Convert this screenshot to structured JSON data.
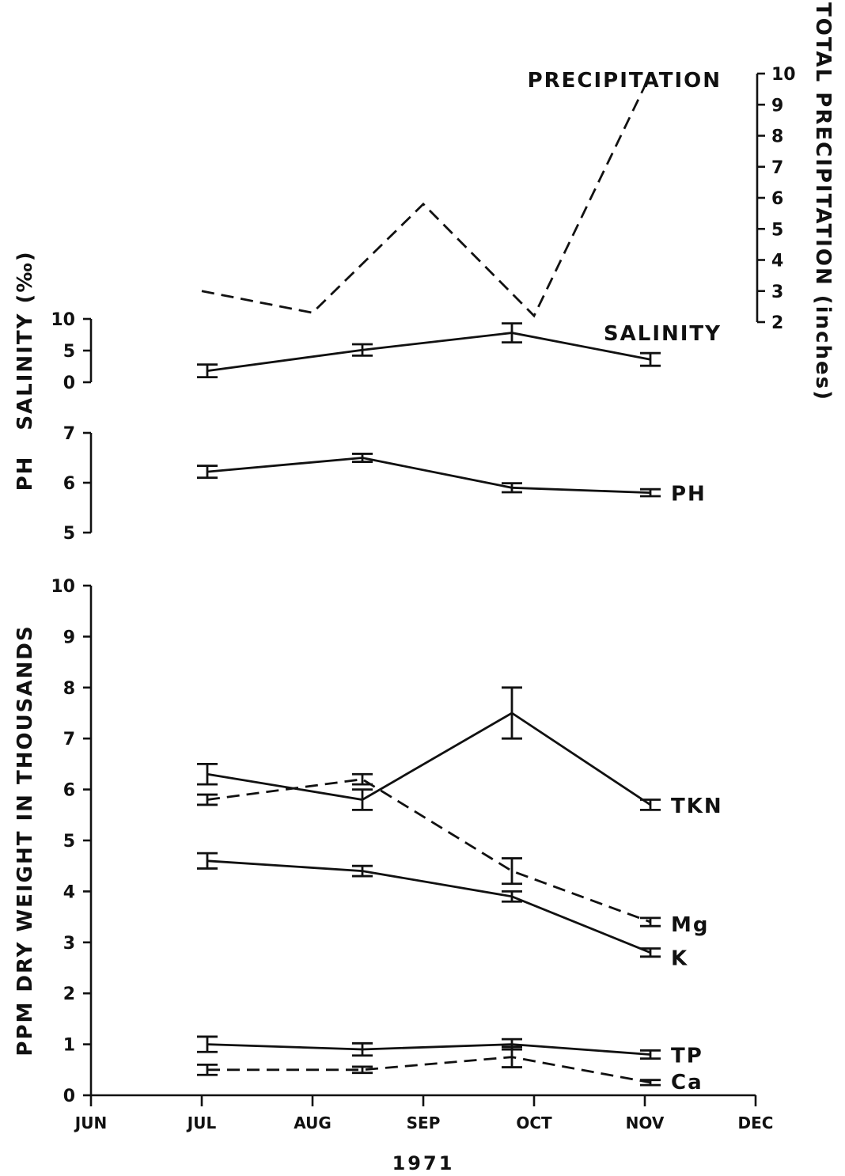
{
  "chart_data": [
    {
      "type": "line",
      "panel": "precipitation",
      "axis_title": "TOTAL PRECIPITATION (inches)",
      "axis_side": "right",
      "ylim": [
        2,
        10
      ],
      "ticks": [
        2,
        3,
        4,
        5,
        6,
        7,
        8,
        9,
        10
      ],
      "tick_labels": [
        "2",
        "3",
        "4",
        "5",
        "6",
        "7",
        "8",
        "9",
        "10"
      ],
      "series": [
        {
          "name": "PRECIPITATION",
          "style": "dashed",
          "x": [
            7.0,
            8.0,
            9.0,
            10.0,
            11.0
          ],
          "y": [
            3.0,
            2.3,
            5.8,
            2.2,
            9.6
          ]
        }
      ]
    },
    {
      "type": "line",
      "panel": "salinity",
      "axis_title": "SALINITY (‰)",
      "ylim": [
        0,
        10
      ],
      "ticks": [
        0,
        5,
        10
      ],
      "tick_labels": [
        "0",
        "5",
        "10"
      ],
      "series": [
        {
          "name": "SALINITY",
          "style": "solid",
          "x": [
            7.05,
            8.45,
            9.8,
            11.05
          ],
          "y": [
            1.8,
            5.1,
            7.8,
            3.6
          ],
          "err": [
            1.0,
            0.9,
            1.5,
            1.0
          ]
        }
      ]
    },
    {
      "type": "line",
      "panel": "ph",
      "axis_title": "PH",
      "ylim": [
        5,
        7
      ],
      "ticks": [
        5,
        6,
        7
      ],
      "tick_labels": [
        "5",
        "6",
        "7"
      ],
      "series": [
        {
          "name": "PH",
          "style": "solid",
          "x": [
            7.05,
            8.45,
            9.8,
            11.05
          ],
          "y": [
            6.22,
            6.5,
            5.9,
            5.8
          ],
          "err": [
            0.12,
            0.08,
            0.09,
            0.07
          ]
        }
      ]
    },
    {
      "type": "line",
      "panel": "nutrients",
      "axis_title": "PPM DRY WEIGHT IN THOUSANDS",
      "ylim": [
        0,
        10
      ],
      "ticks": [
        0,
        1,
        2,
        3,
        4,
        5,
        6,
        7,
        8,
        9,
        10
      ],
      "tick_labels": [
        "0",
        "1",
        "2",
        "3",
        "4",
        "5",
        "6",
        "7",
        "8",
        "9",
        "10"
      ],
      "x_categories": [
        "JUN",
        "JUL",
        "AUG",
        "SEP",
        "OCT",
        "NOV",
        "DEC"
      ],
      "x_caption": "1971",
      "series": [
        {
          "name": "TKN",
          "style": "solid",
          "x": [
            7.05,
            8.45,
            9.8,
            11.05
          ],
          "y": [
            6.3,
            5.8,
            7.5,
            5.7
          ],
          "err": [
            0.2,
            0.2,
            0.5,
            0.1
          ]
        },
        {
          "name": "Mg",
          "style": "dashed",
          "x": [
            7.05,
            8.45,
            9.8,
            11.05
          ],
          "y": [
            5.8,
            6.2,
            4.4,
            3.4
          ],
          "err": [
            0.1,
            0.1,
            0.25,
            0.08
          ]
        },
        {
          "name": "K",
          "style": "solid",
          "x": [
            7.05,
            8.45,
            9.8,
            11.05
          ],
          "y": [
            4.6,
            4.4,
            3.9,
            2.8
          ],
          "err": [
            0.15,
            0.1,
            0.1,
            0.08
          ]
        },
        {
          "name": "TP",
          "style": "solid",
          "x": [
            7.05,
            8.45,
            9.8,
            11.05
          ],
          "y": [
            1.0,
            0.9,
            1.0,
            0.8
          ],
          "err": [
            0.15,
            0.12,
            0.1,
            0.08
          ]
        },
        {
          "name": "Ca",
          "style": "dashed",
          "x": [
            7.05,
            8.45,
            9.8,
            11.05
          ],
          "y": [
            0.5,
            0.5,
            0.75,
            0.25
          ],
          "err": [
            0.1,
            0.06,
            0.2,
            0.05
          ]
        }
      ]
    }
  ]
}
